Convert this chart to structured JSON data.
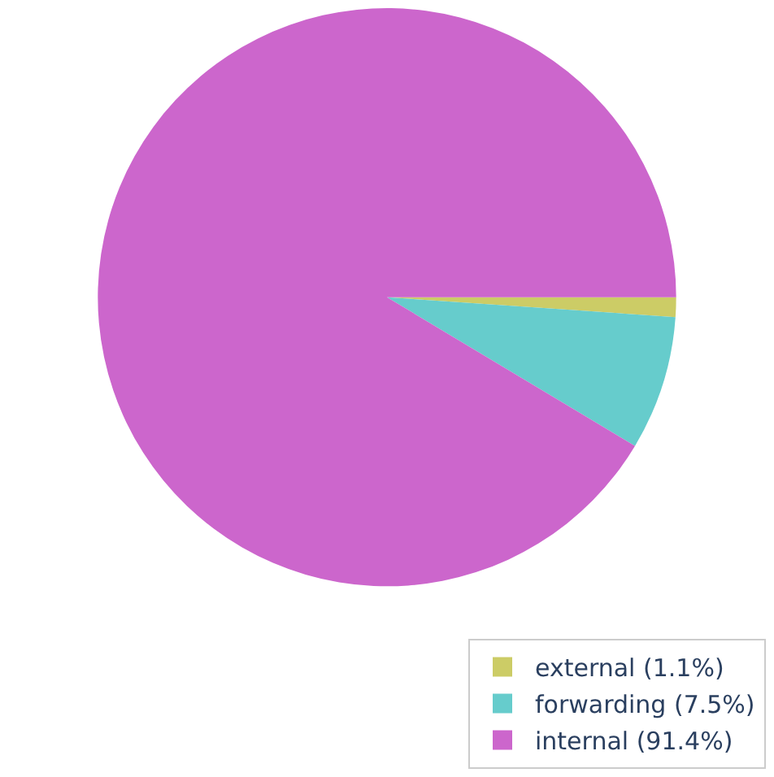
{
  "chart_data": {
    "type": "pie",
    "categories": [
      "external (1.1%)",
      "forwarding (7.5%)",
      "internal (91.4%)"
    ],
    "values": [
      1.1,
      7.5,
      91.4
    ],
    "colors": [
      "#cccc66",
      "#66cccc",
      "#cc66cc"
    ],
    "legend": "bottom right"
  }
}
